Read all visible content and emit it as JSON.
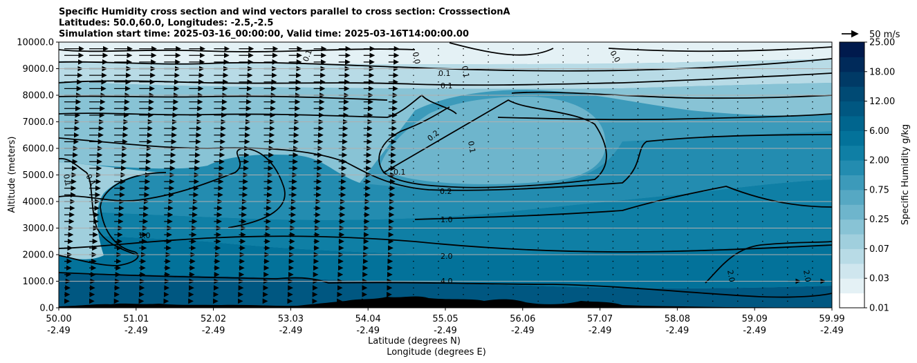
{
  "chart_data": {
    "type": "heatmap",
    "title_lines": [
      "Specific Humidity cross section and wind vectors parallel to cross section: CrosssectionA",
      "Latitudes: 50.0,60.0, Longitudes: -2.5,-2.5",
      "Simulation start time: 2025-03-16_00:00:00, Valid time: 2025-03-16T14:00:00.00"
    ],
    "ylabel": "Altitude (meters)",
    "xlabel_lat": "Latitude (degrees N)",
    "xlabel_lon": "Longitude (degrees E)",
    "ylim": [
      0,
      10000
    ],
    "y_ticks": [
      "0.0",
      "1000.0",
      "2000.0",
      "3000.0",
      "4000.0",
      "5000.0",
      "6000.0",
      "7000.0",
      "8000.0",
      "9000.0",
      "10000.0"
    ],
    "y_tick_values": [
      0,
      1000,
      2000,
      3000,
      4000,
      5000,
      6000,
      7000,
      8000,
      9000,
      10000
    ],
    "x_ticks_lat": [
      "50.00",
      "51.01",
      "52.02",
      "53.03",
      "54.04",
      "55.05",
      "56.06",
      "57.07",
      "58.08",
      "59.09",
      "59.99"
    ],
    "x_ticks_lon": [
      "-2.49",
      "-2.49",
      "-2.49",
      "-2.49",
      "-2.49",
      "-2.49",
      "-2.49",
      "-2.49",
      "-2.49",
      "-2.49",
      "-2.49"
    ],
    "grid": "horizontal",
    "colorbar": {
      "label": "Specific Humidity g/kg",
      "levels": [
        "0.01",
        "0.03",
        "0.07",
        "0.25",
        "0.75",
        "2.00",
        "6.00",
        "12.00",
        "18.00",
        "25.00"
      ],
      "colors": [
        "#ffffff",
        "#e4f1f5",
        "#cfe6ee",
        "#b8dbe6",
        "#a0cfdd",
        "#88c3d5",
        "#6eb5cc",
        "#56a8c3",
        "#3c9aba",
        "#238cb0",
        "#0f7fa5",
        "#03729a",
        "#00658e",
        "#005781",
        "#004a74",
        "#003a66",
        "#002a5a",
        "#001a4d"
      ]
    },
    "wind_key": {
      "label": "50 m/s"
    },
    "contour_labels": [
      "0.0",
      "0.0",
      "0.1",
      "0.1",
      "0.1",
      "0.1",
      "0.2",
      "0.1",
      "0.1",
      "0.1",
      "0.1",
      "0.2",
      "1.0",
      "1.0",
      "2.0",
      "2.0",
      "2.0",
      "4.0"
    ]
  }
}
